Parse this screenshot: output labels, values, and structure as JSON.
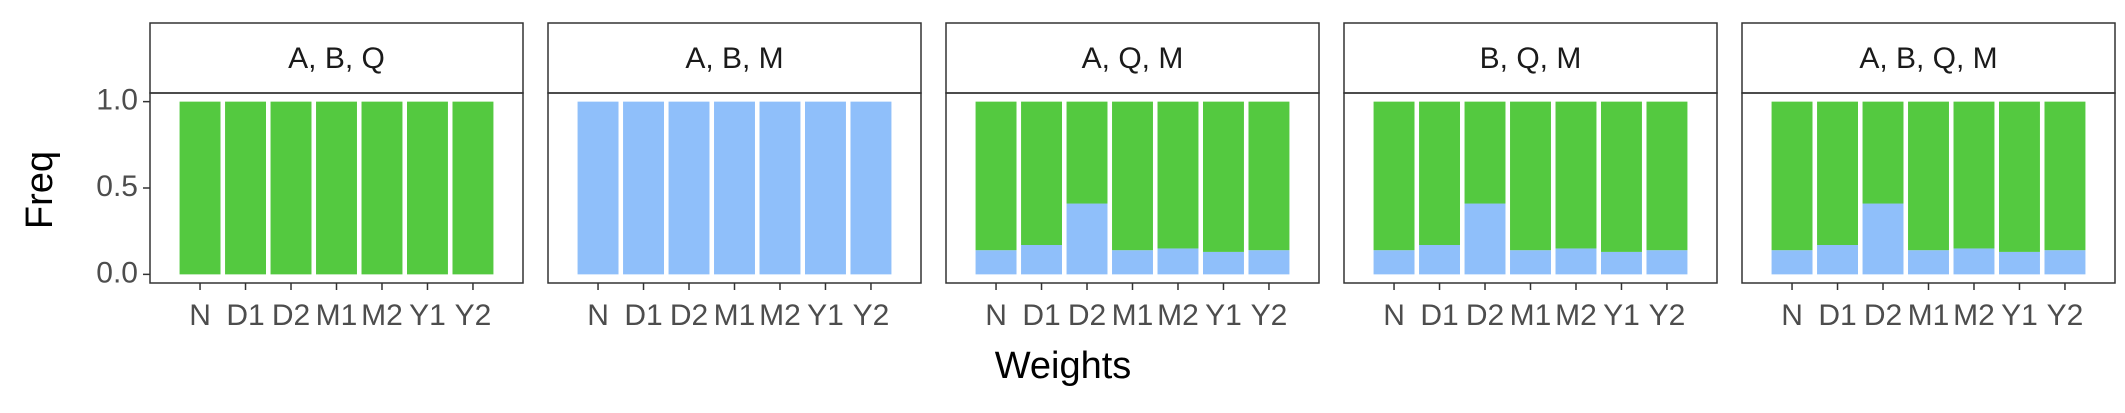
{
  "chart_data": {
    "type": "bar",
    "stacked": true,
    "xlabel": "Weights",
    "ylabel": "Freq",
    "categories": [
      "N",
      "D1",
      "D2",
      "M1",
      "M2",
      "Y1",
      "Y2"
    ],
    "ylim": [
      -0.05,
      1.05
    ],
    "yticks": [
      {
        "value": 0,
        "label": "0.0"
      },
      0.5,
      {
        "value": 1,
        "label": "1.0"
      }
    ],
    "facets": [
      {
        "title": "A, B, Q",
        "series": [
          {
            "color": "#8fbffa",
            "values": [
              0,
              0,
              0,
              0,
              0,
              0,
              0
            ]
          },
          {
            "color": "#54c940",
            "values": [
              1,
              1,
              1,
              1,
              1,
              1,
              1
            ]
          }
        ]
      },
      {
        "title": "A, B, M",
        "series": [
          {
            "color": "#8fbffa",
            "values": [
              1,
              1,
              1,
              1,
              1,
              1,
              1
            ]
          },
          {
            "color": "#54c940",
            "values": [
              0,
              0,
              0,
              0,
              0,
              0,
              0
            ]
          }
        ]
      },
      {
        "title": "A, Q, M",
        "series": [
          {
            "color": "#8fbffa",
            "values": [
              0.14,
              0.17,
              0.41,
              0.14,
              0.15,
              0.13,
              0.14
            ]
          },
          {
            "color": "#54c940",
            "values": [
              0.86,
              0.83,
              0.59,
              0.86,
              0.85,
              0.87,
              0.86
            ]
          }
        ]
      },
      {
        "title": "B, Q, M",
        "series": [
          {
            "color": "#8fbffa",
            "values": [
              0.14,
              0.17,
              0.41,
              0.14,
              0.15,
              0.13,
              0.14
            ]
          },
          {
            "color": "#54c940",
            "values": [
              0.86,
              0.83,
              0.59,
              0.86,
              0.85,
              0.87,
              0.86
            ]
          }
        ]
      },
      {
        "title": "A, B, Q, M",
        "series": [
          {
            "color": "#8fbffa",
            "values": [
              0.14,
              0.17,
              0.41,
              0.14,
              0.15,
              0.13,
              0.14
            ]
          },
          {
            "color": "#54c940",
            "values": [
              0.86,
              0.83,
              0.59,
              0.86,
              0.85,
              0.87,
              0.86
            ]
          }
        ]
      }
    ]
  }
}
